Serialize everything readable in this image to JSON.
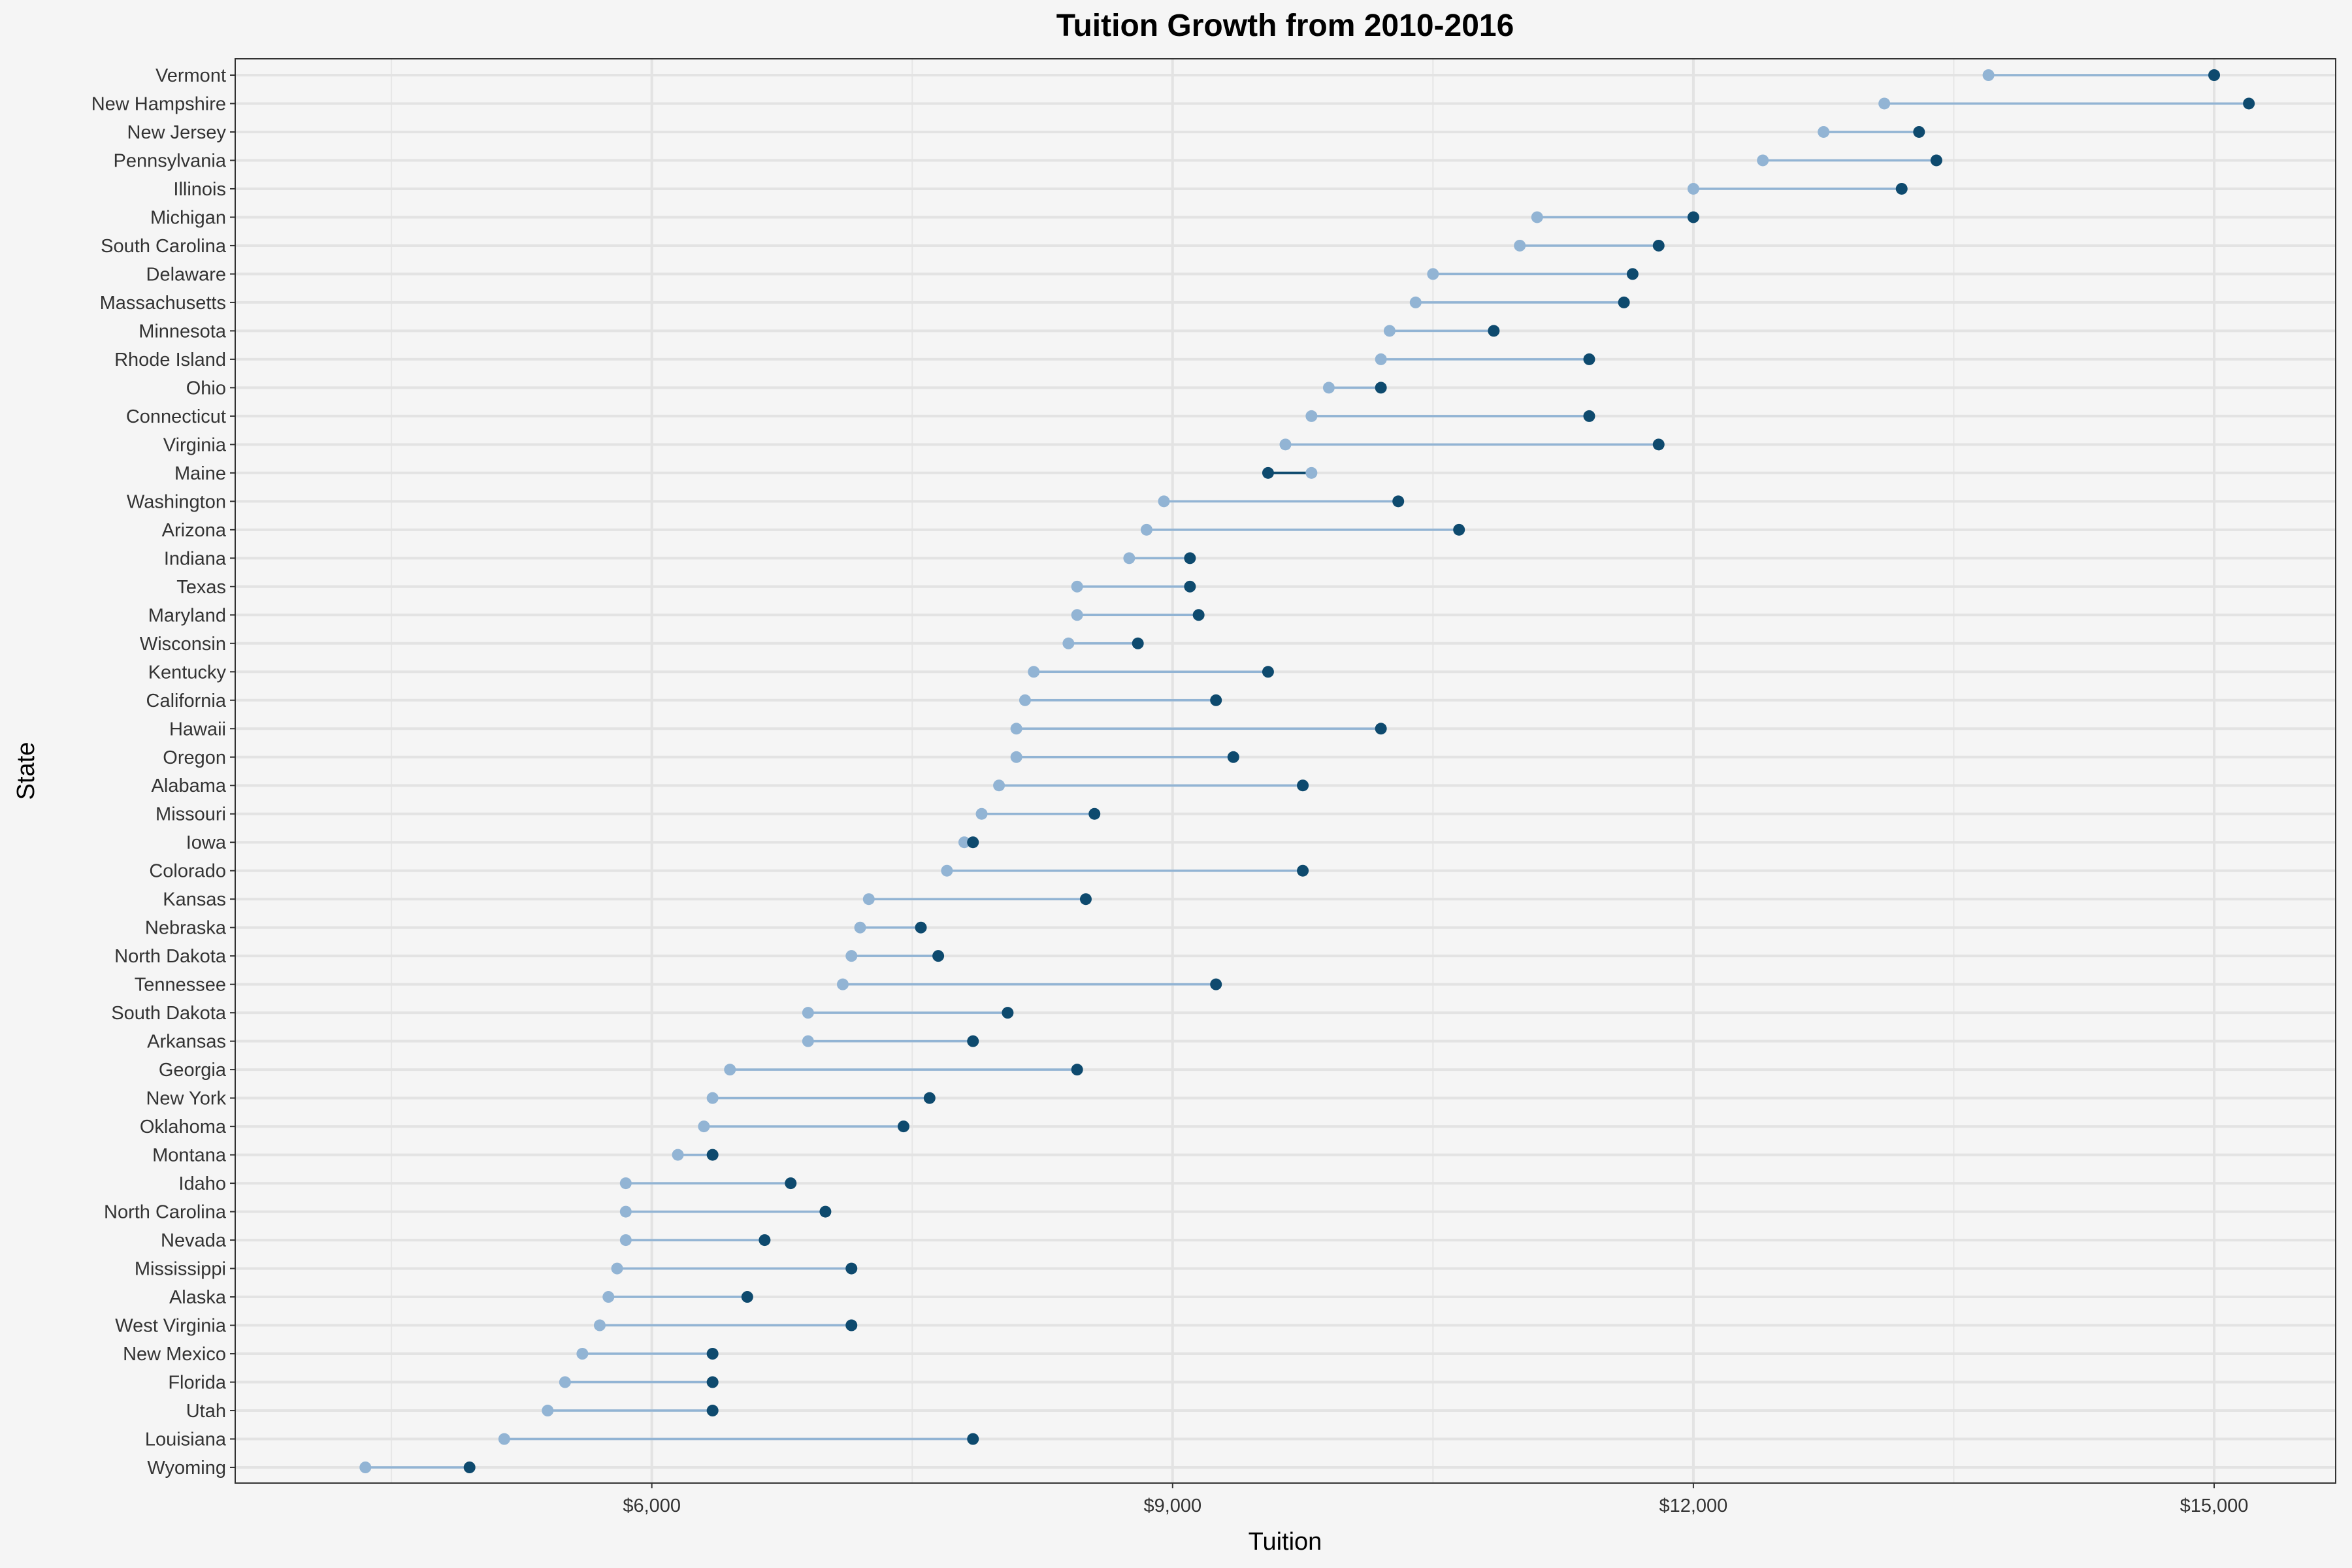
{
  "chart_data": {
    "type": "dumbbell",
    "title": "Tuition Growth from 2010-2016",
    "xlabel": "Tuition",
    "ylabel": "State",
    "xlim": [
      3600,
      15700
    ],
    "x_ticks": [
      6000,
      9000,
      12000,
      15000
    ],
    "x_tick_labels": [
      "$6,000",
      "$9,000",
      "$12,000",
      "$15,000"
    ],
    "grid": true,
    "colors": {
      "start": "#92b4d4",
      "end": "#0e4a6e",
      "line": "#92b4d4",
      "line_decrease": "#0e4a6e"
    },
    "states": [
      {
        "state": "Vermont",
        "start": 13700,
        "end": 15000
      },
      {
        "state": "New Hampshire",
        "start": 13100,
        "end": 15200
      },
      {
        "state": "New Jersey",
        "start": 12750,
        "end": 13300
      },
      {
        "state": "Pennsylvania",
        "start": 12400,
        "end": 13400
      },
      {
        "state": "Illinois",
        "start": 12000,
        "end": 13200
      },
      {
        "state": "Michigan",
        "start": 11100,
        "end": 12000
      },
      {
        "state": "South Carolina",
        "start": 11000,
        "end": 11800
      },
      {
        "state": "Delaware",
        "start": 10500,
        "end": 11650
      },
      {
        "state": "Massachusetts",
        "start": 10400,
        "end": 11600
      },
      {
        "state": "Minnesota",
        "start": 10250,
        "end": 10850
      },
      {
        "state": "Rhode Island",
        "start": 10200,
        "end": 11400
      },
      {
        "state": "Ohio",
        "start": 9900,
        "end": 10200
      },
      {
        "state": "Connecticut",
        "start": 9800,
        "end": 11400
      },
      {
        "state": "Virginia",
        "start": 9650,
        "end": 11800
      },
      {
        "state": "Maine",
        "start": 9800,
        "end": 9550
      },
      {
        "state": "Washington",
        "start": 8950,
        "end": 10300
      },
      {
        "state": "Arizona",
        "start": 8850,
        "end": 10650
      },
      {
        "state": "Indiana",
        "start": 8750,
        "end": 9100
      },
      {
        "state": "Texas",
        "start": 8450,
        "end": 9100
      },
      {
        "state": "Maryland",
        "start": 8450,
        "end": 9150
      },
      {
        "state": "Wisconsin",
        "start": 8400,
        "end": 8800
      },
      {
        "state": "Kentucky",
        "start": 8200,
        "end": 9550
      },
      {
        "state": "California",
        "start": 8150,
        "end": 9250
      },
      {
        "state": "Hawaii",
        "start": 8100,
        "end": 10200
      },
      {
        "state": "Oregon",
        "start": 8100,
        "end": 9350
      },
      {
        "state": "Alabama",
        "start": 8000,
        "end": 9750
      },
      {
        "state": "Missouri",
        "start": 7900,
        "end": 8550
      },
      {
        "state": "Iowa",
        "start": 7800,
        "end": 7850
      },
      {
        "state": "Colorado",
        "start": 7700,
        "end": 9750
      },
      {
        "state": "Kansas",
        "start": 7250,
        "end": 8500
      },
      {
        "state": "Nebraska",
        "start": 7200,
        "end": 7550
      },
      {
        "state": "North Dakota",
        "start": 7150,
        "end": 7650
      },
      {
        "state": "Tennessee",
        "start": 7100,
        "end": 9250
      },
      {
        "state": "South Dakota",
        "start": 6900,
        "end": 8050
      },
      {
        "state": "Arkansas",
        "start": 6900,
        "end": 7850
      },
      {
        "state": "Georgia",
        "start": 6450,
        "end": 8450
      },
      {
        "state": "New York",
        "start": 6350,
        "end": 7600
      },
      {
        "state": "Oklahoma",
        "start": 6300,
        "end": 7450
      },
      {
        "state": "Montana",
        "start": 6150,
        "end": 6350
      },
      {
        "state": "Idaho",
        "start": 5850,
        "end": 6800
      },
      {
        "state": "North Carolina",
        "start": 5850,
        "end": 7000
      },
      {
        "state": "Nevada",
        "start": 5850,
        "end": 6650
      },
      {
        "state": "Mississippi",
        "start": 5800,
        "end": 7150
      },
      {
        "state": "Alaska",
        "start": 5750,
        "end": 6550
      },
      {
        "state": "West Virginia",
        "start": 5700,
        "end": 7150
      },
      {
        "state": "New Mexico",
        "start": 5600,
        "end": 6350
      },
      {
        "state": "Florida",
        "start": 5500,
        "end": 6350
      },
      {
        "state": "Utah",
        "start": 5400,
        "end": 6350
      },
      {
        "state": "Louisiana",
        "start": 5150,
        "end": 7850
      },
      {
        "state": "Wyoming",
        "start": 4350,
        "end": 4950
      }
    ]
  }
}
